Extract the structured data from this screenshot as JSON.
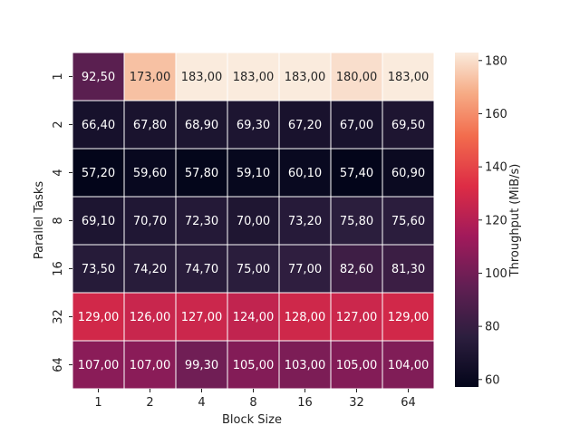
{
  "chart_data": {
    "type": "heatmap",
    "xlabel": "Block Size",
    "ylabel": "Parallel Tasks",
    "colorbar_label": "Throughput (MiB/s)",
    "x_categories": [
      "1",
      "2",
      "4",
      "8",
      "16",
      "32",
      "64"
    ],
    "y_categories": [
      "1",
      "2",
      "4",
      "8",
      "16",
      "32",
      "64"
    ],
    "values": [
      [
        92.5,
        173.0,
        183.0,
        183.0,
        183.0,
        180.0,
        183.0
      ],
      [
        66.4,
        67.8,
        68.9,
        69.3,
        67.2,
        67.0,
        69.5
      ],
      [
        57.2,
        59.6,
        57.8,
        59.1,
        60.1,
        57.4,
        60.9
      ],
      [
        69.1,
        70.7,
        72.3,
        70.0,
        73.2,
        75.8,
        75.6
      ],
      [
        73.5,
        74.2,
        74.7,
        75.0,
        77.0,
        82.6,
        81.3
      ],
      [
        129.0,
        126.0,
        127.0,
        124.0,
        128.0,
        127.0,
        129.0
      ],
      [
        107.0,
        107.0,
        99.3,
        105.0,
        103.0,
        105.0,
        104.0
      ]
    ],
    "annotations": [
      [
        "92,50",
        "173,00",
        "183,00",
        "183,00",
        "183,00",
        "180,00",
        "183,00"
      ],
      [
        "66,40",
        "67,80",
        "68,90",
        "69,30",
        "67,20",
        "67,00",
        "69,50"
      ],
      [
        "57,20",
        "59,60",
        "57,80",
        "59,10",
        "60,10",
        "57,40",
        "60,90"
      ],
      [
        "69,10",
        "70,70",
        "72,30",
        "70,00",
        "73,20",
        "75,80",
        "75,60"
      ],
      [
        "73,50",
        "74,20",
        "74,70",
        "75,00",
        "77,00",
        "82,60",
        "81,30"
      ],
      [
        "129,00",
        "126,00",
        "127,00",
        "124,00",
        "128,00",
        "127,00",
        "129,00"
      ],
      [
        "107,00",
        "107,00",
        "99,30",
        "105,00",
        "103,00",
        "105,00",
        "104,00"
      ]
    ],
    "color_range": [
      57.2,
      183.0
    ],
    "colorbar_ticks": [
      60,
      80,
      100,
      120,
      140,
      160,
      180
    ],
    "colormap": "rocket"
  }
}
